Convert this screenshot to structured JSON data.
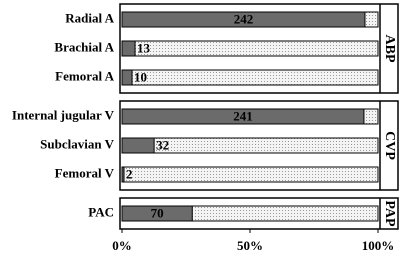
{
  "chart_data": [
    {
      "type": "bar",
      "panel_label": "ABP",
      "categories": [
        "Radial A",
        "Brachial A",
        "Femoral A"
      ],
      "values": [
        242,
        13,
        10
      ],
      "color": "#6b6b6b",
      "xlim": [
        0,
        255
      ]
    },
    {
      "type": "bar",
      "panel_label": "CVP",
      "categories": [
        "Internal jugular V",
        "Subclavian V",
        "Femoral V"
      ],
      "values": [
        241,
        32,
        2
      ],
      "color": "#6b6b6b",
      "xlim": [
        0,
        255
      ]
    },
    {
      "type": "bar",
      "panel_label": "PAP",
      "categories": [
        "PAC"
      ],
      "values": [
        70
      ],
      "color": "#6b6b6b",
      "xlim": [
        0,
        255
      ],
      "xticks": [
        {
          "value": 0,
          "label": "0%"
        },
        {
          "value": 127.5,
          "label": "50%"
        },
        {
          "value": 255,
          "label": "100%"
        }
      ]
    }
  ]
}
